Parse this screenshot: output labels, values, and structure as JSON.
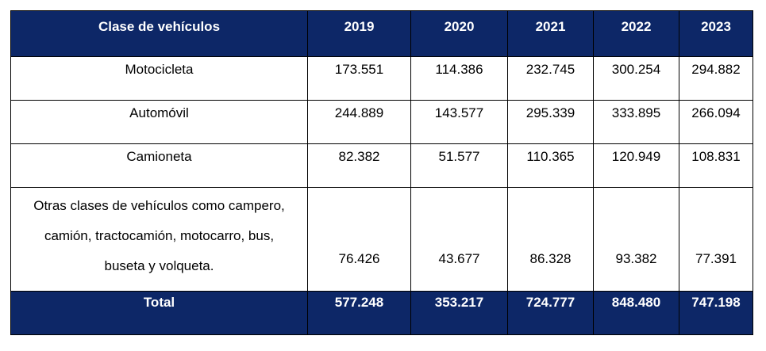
{
  "table": {
    "headers": [
      "Clase de vehículos",
      "2019",
      "2020",
      "2021",
      "2022",
      "2023"
    ],
    "rows": [
      {
        "label": "Motocicleta",
        "values": [
          "173.551",
          "114.386",
          "232.745",
          "300.254",
          "294.882"
        ]
      },
      {
        "label": "Automóvil",
        "values": [
          "244.889",
          "143.577",
          "295.339",
          "333.895",
          "266.094"
        ]
      },
      {
        "label": "Camioneta",
        "values": [
          "82.382",
          "51.577",
          "110.365",
          "120.949",
          "108.831"
        ]
      },
      {
        "label_lines": [
          "Otras clases de vehículos como campero,",
          "camión, tractocamión, motocarro, bus,",
          "buseta y volqueta."
        ],
        "values": [
          "76.426",
          "43.677",
          "86.328",
          "93.382",
          "77.391"
        ]
      }
    ],
    "total": {
      "label": "Total",
      "values": [
        "577.248",
        "353.217",
        "724.777",
        "848.480",
        "747.198"
      ]
    }
  },
  "colors": {
    "header_bg": "#0d2767",
    "header_text": "#ffffff",
    "border": "#000000"
  }
}
